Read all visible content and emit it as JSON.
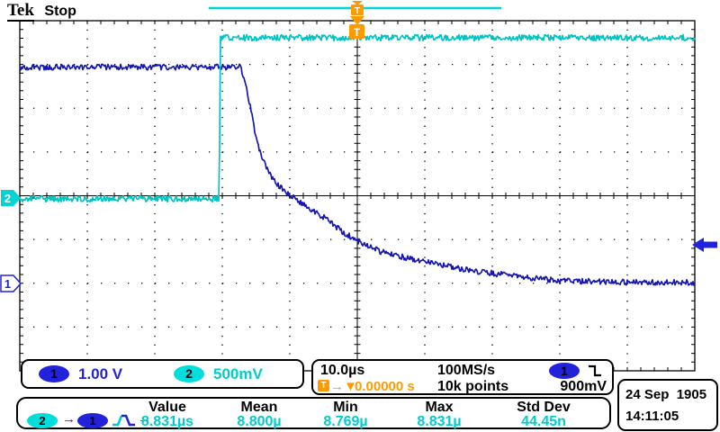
{
  "header": {
    "logo": "Tek",
    "status": "Stop"
  },
  "trigger": {
    "t_label": "T",
    "arrow_glyph": "→▼",
    "delay": "0.00000 s",
    "level": "900mV",
    "source_badge": "1",
    "slope": "falling"
  },
  "graticule_markers": {
    "ch1_ground_label": "1",
    "ch2_ground_label": "2"
  },
  "readouts": {
    "ch1_badge": "1",
    "ch1_scale": "1.00 V",
    "ch2_badge": "2",
    "ch2_scale": "500mV",
    "timebase": "10.0µs",
    "sample_rate": "100MS/s",
    "record": "10k points"
  },
  "datetime": {
    "date": "24 Sep  1905",
    "time": "14:11:05"
  },
  "measurement": {
    "src_badge": "2",
    "dst_badge": "1",
    "arrow": "→",
    "headers": [
      "Value",
      "Mean",
      "Min",
      "Max",
      "Std Dev"
    ],
    "values": [
      "8.831µs",
      "8.800µ",
      "8.769µ",
      "8.831µ",
      "44.45n"
    ]
  },
  "colors": {
    "ch1": "#2222dd",
    "ch1_trace": "#1717b2",
    "ch2": "#00cccc",
    "ch2_trace": "#00c4c4",
    "orange": "#ff9900"
  },
  "chart_data": {
    "type": "line",
    "title": "Stopped acquisition: CH2 step followed by CH1 exponential decay; delay measurement CH2 rise to CH1 fall",
    "x_axis": {
      "unit": "µs",
      "time_per_div": 10.0,
      "divisions": 10,
      "range": [
        -50,
        50
      ],
      "trigger_time": 0
    },
    "y_axis": {
      "divisions": 8
    },
    "legend": [
      "CH1 1.00 V/div",
      "CH2 500mV/div"
    ],
    "series": [
      {
        "name": "CH1",
        "color": "#1717b2",
        "unit": "V",
        "volts_per_div": 1.0,
        "ground_div_from_top": 6.0,
        "noise_vpp": 0.13,
        "points": [
          [
            -50,
            4.94
          ],
          [
            -17.3,
            4.94
          ],
          [
            -16.5,
            4.49
          ],
          [
            -16.0,
            4.16
          ],
          [
            -15.2,
            3.5
          ],
          [
            -14.7,
            3.13
          ],
          [
            -13.3,
            2.57
          ],
          [
            -11.6,
            2.22
          ],
          [
            -9.9,
            2.0
          ],
          [
            -8.0,
            1.79
          ],
          [
            -4.9,
            1.5
          ],
          [
            -2.3,
            1.19
          ],
          [
            0,
            0.97
          ],
          [
            3.5,
            0.72
          ],
          [
            8.0,
            0.56
          ],
          [
            12.4,
            0.41
          ],
          [
            17.7,
            0.27
          ],
          [
            23.5,
            0.16
          ],
          [
            30.1,
            0.06
          ],
          [
            40.4,
            0.02
          ],
          [
            50,
            0.02
          ]
        ]
      },
      {
        "name": "CH2",
        "color": "#00c4c4",
        "unit": "V",
        "volts_per_div": 0.5,
        "ground_div_from_top": 4.05,
        "noise_vpp": 0.07,
        "points": [
          [
            -50,
            -0.01
          ],
          [
            -20.45,
            -0.01
          ],
          [
            -20.3,
            1.83
          ],
          [
            50,
            1.83
          ]
        ]
      }
    ],
    "measurements": {
      "delay_value": "8.831µs",
      "mean": "8.800µ",
      "min": "8.769µ",
      "max": "8.831µ",
      "std_dev": "44.45n"
    }
  }
}
